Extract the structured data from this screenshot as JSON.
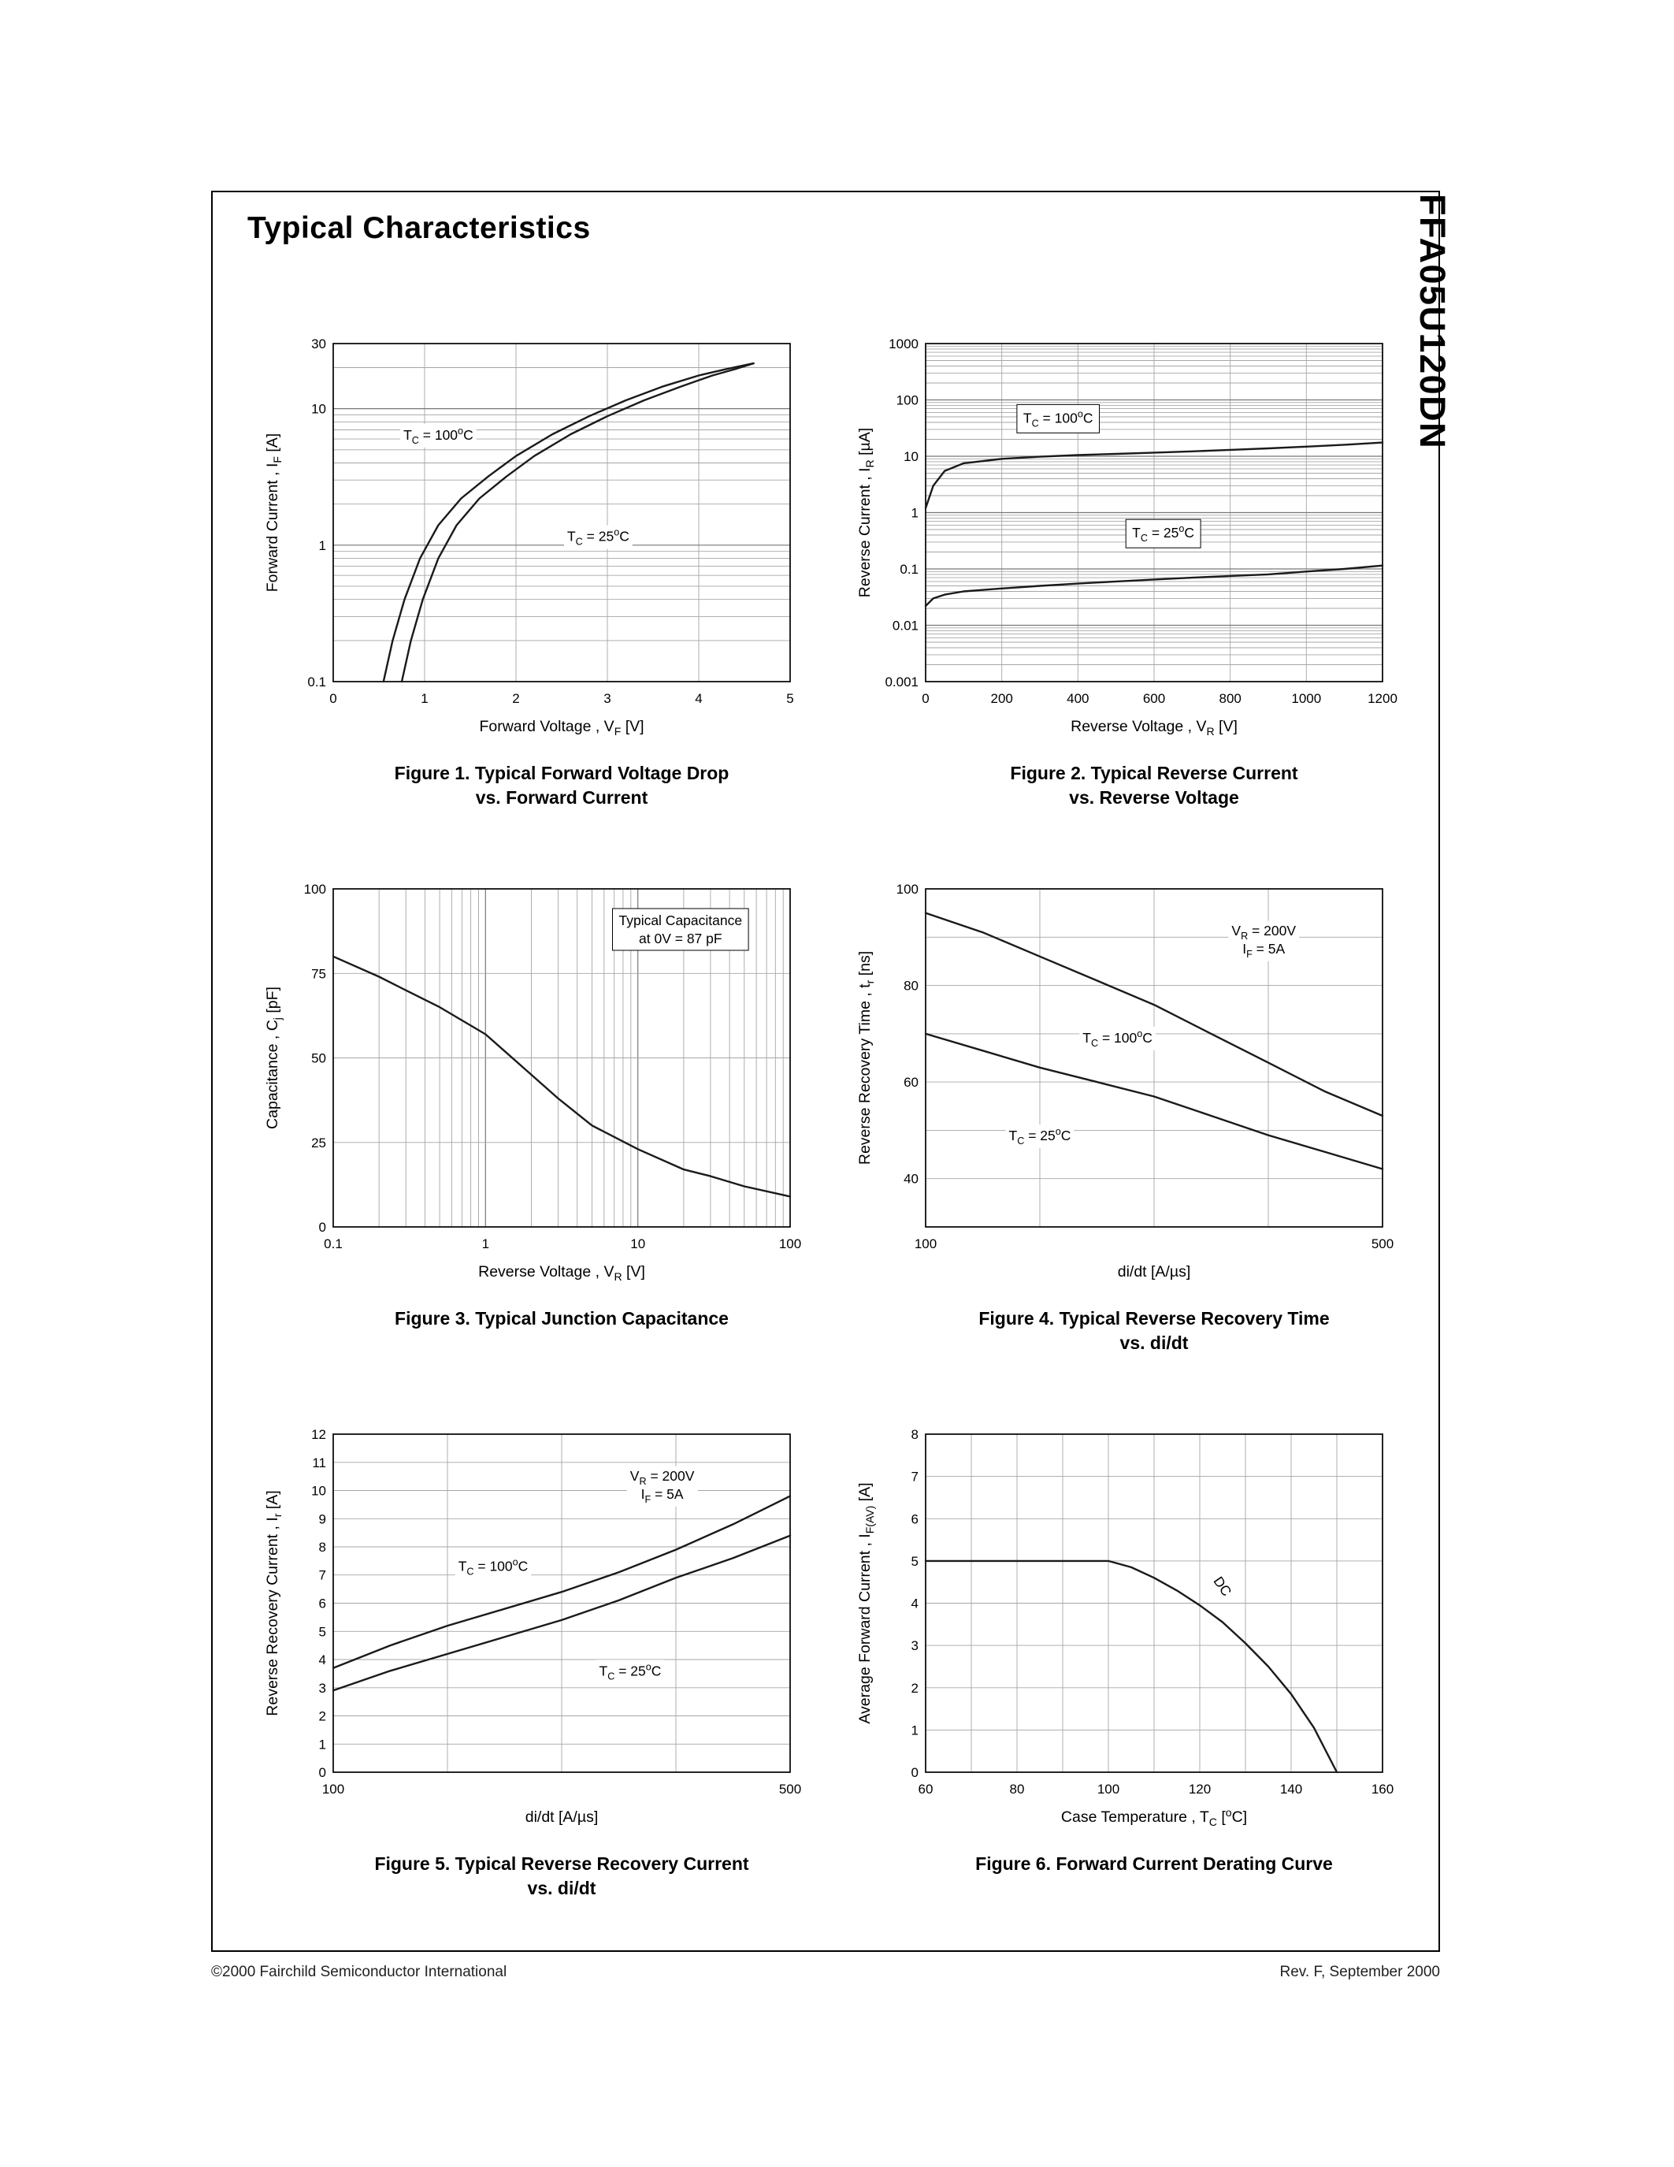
{
  "page": {
    "title": "Typical Characteristics",
    "part_number": "FFA05U120DN",
    "footer_left": "©2000 Fairchild Semiconductor International",
    "footer_right": "Rev. F, September 2000"
  },
  "figures": [
    {
      "caption_line1": "Figure 1. Typical Forward Voltage Drop",
      "caption_line2": "vs. Forward Current"
    },
    {
      "caption_line1": "Figure 2. Typical Reverse Current",
      "caption_line2": "vs. Reverse Voltage"
    },
    {
      "caption_line1": "Figure 3. Typical Junction Capacitance"
    },
    {
      "caption_line1": "Figure 4. Typical Reverse Recovery Time",
      "caption_line2": "vs. di/dt"
    },
    {
      "caption_line1": "Figure 5. Typical Reverse Recovery Current",
      "caption_line2": "vs. di/dt"
    },
    {
      "caption_line1": "Figure 6. Forward Current Derating Curve"
    }
  ],
  "chart_data": [
    {
      "type": "line",
      "title": "Figure 1. Typical Forward Voltage Drop vs. Forward Current",
      "x_axis": {
        "label": "Forward Voltage , V~F~ [V]",
        "scale": "linear",
        "min": 0,
        "max": 5,
        "ticks": [
          0,
          1,
          2,
          3,
          4,
          5
        ],
        "grid_values": [
          1,
          2,
          3,
          4
        ]
      },
      "y_axis": {
        "label": "Forward Current , I~F~ [A]",
        "scale": "log",
        "min": 0.1,
        "max": 30,
        "ticks": [
          0.1,
          1,
          10,
          30
        ],
        "tick_labels": [
          "0.1",
          "1",
          "10",
          "30"
        ]
      },
      "series": [
        {
          "name": "TC = 100°C",
          "points": [
            [
              0.55,
              0.1
            ],
            [
              0.65,
              0.2
            ],
            [
              0.78,
              0.4
            ],
            [
              0.95,
              0.8
            ],
            [
              1.15,
              1.4
            ],
            [
              1.4,
              2.2
            ],
            [
              1.7,
              3.2
            ],
            [
              2.0,
              4.5
            ],
            [
              2.4,
              6.5
            ],
            [
              2.8,
              8.8
            ],
            [
              3.2,
              11.5
            ],
            [
              3.6,
              14.5
            ],
            [
              4.0,
              17.5
            ],
            [
              4.3,
              19.5
            ],
            [
              4.6,
              21.5
            ]
          ]
        },
        {
          "name": "TC = 25°C",
          "points": [
            [
              0.75,
              0.1
            ],
            [
              0.85,
              0.2
            ],
            [
              0.98,
              0.4
            ],
            [
              1.15,
              0.8
            ],
            [
              1.35,
              1.4
            ],
            [
              1.6,
              2.2
            ],
            [
              1.9,
              3.2
            ],
            [
              2.2,
              4.5
            ],
            [
              2.6,
              6.5
            ],
            [
              3.0,
              8.8
            ],
            [
              3.4,
              11.5
            ],
            [
              3.8,
              14.5
            ],
            [
              4.15,
              17.5
            ],
            [
              4.4,
              19.5
            ],
            [
              4.6,
              21.5
            ]
          ]
        }
      ],
      "annotations": [
        {
          "text": "T~C~ = 100^o^C",
          "fx": 0.23,
          "fy": 0.27
        },
        {
          "text": "T~C~ = 25^o^C",
          "fx": 0.58,
          "fy": 0.57
        }
      ]
    },
    {
      "type": "line",
      "title": "Figure 2. Typical Reverse Current vs. Reverse Voltage",
      "x_axis": {
        "label": "Reverse Voltage , V~R~ [V]",
        "scale": "linear",
        "min": 0,
        "max": 1200,
        "ticks": [
          0,
          200,
          400,
          600,
          800,
          1000,
          1200
        ],
        "grid_values": [
          200,
          400,
          600,
          800,
          1000
        ]
      },
      "y_axis": {
        "label": "Reverse Current , I~R~ [µA]",
        "scale": "log",
        "min": 0.001,
        "max": 1000,
        "ticks": [
          1000,
          100,
          10,
          1,
          0.1,
          0.01,
          0.001
        ],
        "tick_labels": [
          "1000",
          "100",
          "10",
          "1",
          "0.1",
          "0.01",
          "0.001"
        ]
      },
      "series": [
        {
          "name": "TC = 100°C",
          "points": [
            [
              0,
              1.2
            ],
            [
              20,
              3
            ],
            [
              50,
              5.5
            ],
            [
              100,
              7.5
            ],
            [
              200,
              9
            ],
            [
              300,
              9.8
            ],
            [
              400,
              10.5
            ],
            [
              500,
              11
            ],
            [
              600,
              11.6
            ],
            [
              700,
              12.2
            ],
            [
              800,
              13
            ],
            [
              900,
              13.8
            ],
            [
              1000,
              14.8
            ],
            [
              1100,
              16
            ],
            [
              1200,
              17.5
            ]
          ]
        },
        {
          "name": "TC = 25°C",
          "points": [
            [
              0,
              0.022
            ],
            [
              20,
              0.03
            ],
            [
              50,
              0.035
            ],
            [
              100,
              0.04
            ],
            [
              200,
              0.045
            ],
            [
              300,
              0.05
            ],
            [
              400,
              0.055
            ],
            [
              500,
              0.06
            ],
            [
              600,
              0.065
            ],
            [
              700,
              0.07
            ],
            [
              800,
              0.075
            ],
            [
              900,
              0.08
            ],
            [
              1000,
              0.09
            ],
            [
              1100,
              0.1
            ],
            [
              1200,
              0.115
            ]
          ]
        }
      ],
      "annotations": [
        {
          "text": "T~C~ = 100^o^C",
          "fx": 0.29,
          "fy": 0.22,
          "boxed": true
        },
        {
          "text": "T~C~ = 25^o^C",
          "fx": 0.52,
          "fy": 0.56,
          "boxed": true
        }
      ]
    },
    {
      "type": "line",
      "title": "Figure 3. Typical Junction Capacitance",
      "x_axis": {
        "label": "Reverse Voltage , V~R~ [V]",
        "scale": "log",
        "min": 0.1,
        "max": 100,
        "ticks": [
          0.1,
          1,
          10,
          100
        ],
        "tick_labels": [
          "0.1",
          "1",
          "10",
          "100"
        ]
      },
      "y_axis": {
        "label": "Capacitance , C~j~ [pF]",
        "scale": "linear",
        "min": 0,
        "max": 100,
        "ticks": [
          0,
          25,
          50,
          75,
          100
        ],
        "grid_values": [
          25,
          50,
          75
        ]
      },
      "series": [
        {
          "name": "Cj",
          "points": [
            [
              0.1,
              80
            ],
            [
              0.2,
              74
            ],
            [
              0.3,
              70
            ],
            [
              0.5,
              65
            ],
            [
              1,
              57
            ],
            [
              2,
              45
            ],
            [
              3,
              38
            ],
            [
              5,
              30
            ],
            [
              10,
              23
            ],
            [
              20,
              17
            ],
            [
              30,
              15
            ],
            [
              50,
              12
            ],
            [
              100,
              9
            ]
          ]
        }
      ],
      "annotations": [
        {
          "text": "Typical Capacitance\nat  0V = 87 pF",
          "fx": 0.76,
          "fy": 0.12,
          "boxed": true
        }
      ]
    },
    {
      "type": "line",
      "title": "Figure 4. Typical Reverse Recovery Time vs. di/dt",
      "x_axis": {
        "label": "di/dt [A/µs]",
        "scale": "linear",
        "min": 100,
        "max": 500,
        "ticks": [
          100,
          500
        ],
        "grid_values": [
          200,
          300,
          400
        ]
      },
      "y_axis": {
        "label": "Reverse Recovery Time , t~r~ [ns]",
        "scale": "linear",
        "min": 30,
        "max": 100,
        "ticks": [
          40,
          60,
          80,
          100
        ],
        "grid_values": [
          40,
          50,
          60,
          70,
          80,
          90
        ]
      },
      "series": [
        {
          "name": "TC = 100°C",
          "points": [
            [
              100,
              95
            ],
            [
              150,
              91
            ],
            [
              200,
              86
            ],
            [
              250,
              81
            ],
            [
              300,
              76
            ],
            [
              350,
              70
            ],
            [
              400,
              64
            ],
            [
              450,
              58
            ],
            [
              500,
              53
            ]
          ]
        },
        {
          "name": "TC = 25°C",
          "points": [
            [
              100,
              70
            ],
            [
              150,
              66.5
            ],
            [
              200,
              63
            ],
            [
              250,
              60
            ],
            [
              300,
              57
            ],
            [
              350,
              53
            ],
            [
              400,
              49
            ],
            [
              450,
              45.5
            ],
            [
              500,
              42
            ]
          ]
        }
      ],
      "annotations": [
        {
          "text": "V~R~ = 200V\nI~F~ = 5A",
          "fx": 0.74,
          "fy": 0.15
        },
        {
          "text": "T~C~ = 100^o^C",
          "fx": 0.42,
          "fy": 0.44
        },
        {
          "text": "T~C~ = 25^o^C",
          "fx": 0.25,
          "fy": 0.73
        }
      ]
    },
    {
      "type": "line",
      "title": "Figure 5. Typical Reverse Recovery Current vs. di/dt",
      "x_axis": {
        "label": "di/dt [A/µs]",
        "scale": "linear",
        "min": 100,
        "max": 500,
        "ticks": [
          100,
          500
        ],
        "grid_values": [
          200,
          300,
          400
        ]
      },
      "y_axis": {
        "label": "Reverse Recovery Current , I~r~ [A]",
        "scale": "linear",
        "min": 0,
        "max": 12,
        "ticks": [
          0,
          1,
          2,
          3,
          4,
          5,
          6,
          7,
          8,
          9,
          10,
          11,
          12
        ],
        "grid_values": [
          1,
          2,
          3,
          4,
          5,
          6,
          7,
          8,
          9,
          10,
          11
        ]
      },
      "series": [
        {
          "name": "TC = 100°C",
          "points": [
            [
              100,
              3.7
            ],
            [
              150,
              4.5
            ],
            [
              200,
              5.2
            ],
            [
              250,
              5.8
            ],
            [
              300,
              6.4
            ],
            [
              350,
              7.1
            ],
            [
              400,
              7.9
            ],
            [
              450,
              8.8
            ],
            [
              500,
              9.8
            ]
          ]
        },
        {
          "name": "TC = 25°C",
          "points": [
            [
              100,
              2.9
            ],
            [
              150,
              3.6
            ],
            [
              200,
              4.2
            ],
            [
              250,
              4.8
            ],
            [
              300,
              5.4
            ],
            [
              350,
              6.1
            ],
            [
              400,
              6.9
            ],
            [
              450,
              7.6
            ],
            [
              500,
              8.4
            ]
          ]
        }
      ],
      "annotations": [
        {
          "text": "V~R~ = 200V\nI~F~ = 5A",
          "fx": 0.72,
          "fy": 0.15
        },
        {
          "text": "T~C~ = 100^o^C",
          "fx": 0.35,
          "fy": 0.39
        },
        {
          "text": "T~C~ = 25^o^C",
          "fx": 0.65,
          "fy": 0.7
        }
      ]
    },
    {
      "type": "line",
      "title": "Figure 6. Forward Current Derating Curve",
      "x_axis": {
        "label": "Case Temperature , T~C~ [^o^C]",
        "scale": "linear",
        "min": 60,
        "max": 160,
        "ticks": [
          60,
          80,
          100,
          120,
          140,
          160
        ],
        "grid_values": [
          70,
          80,
          90,
          100,
          110,
          120,
          130,
          140,
          150
        ]
      },
      "y_axis": {
        "label": "Average Forward Current , I~F(AV)~ [A]",
        "scale": "linear",
        "min": 0,
        "max": 8,
        "ticks": [
          0,
          1,
          2,
          3,
          4,
          5,
          6,
          7,
          8
        ],
        "grid_values": [
          1,
          2,
          3,
          4,
          5,
          6,
          7
        ]
      },
      "series": [
        {
          "name": "DC",
          "points": [
            [
              60,
              5
            ],
            [
              100,
              5
            ],
            [
              105,
              4.85
            ],
            [
              110,
              4.6
            ],
            [
              115,
              4.3
            ],
            [
              120,
              3.95
            ],
            [
              125,
              3.55
            ],
            [
              130,
              3.05
            ],
            [
              135,
              2.5
            ],
            [
              140,
              1.85
            ],
            [
              145,
              1.05
            ],
            [
              150,
              0
            ]
          ]
        }
      ],
      "annotations": [
        {
          "text": "DC",
          "fx": 0.65,
          "fy": 0.45,
          "rotate": 55
        }
      ]
    }
  ]
}
